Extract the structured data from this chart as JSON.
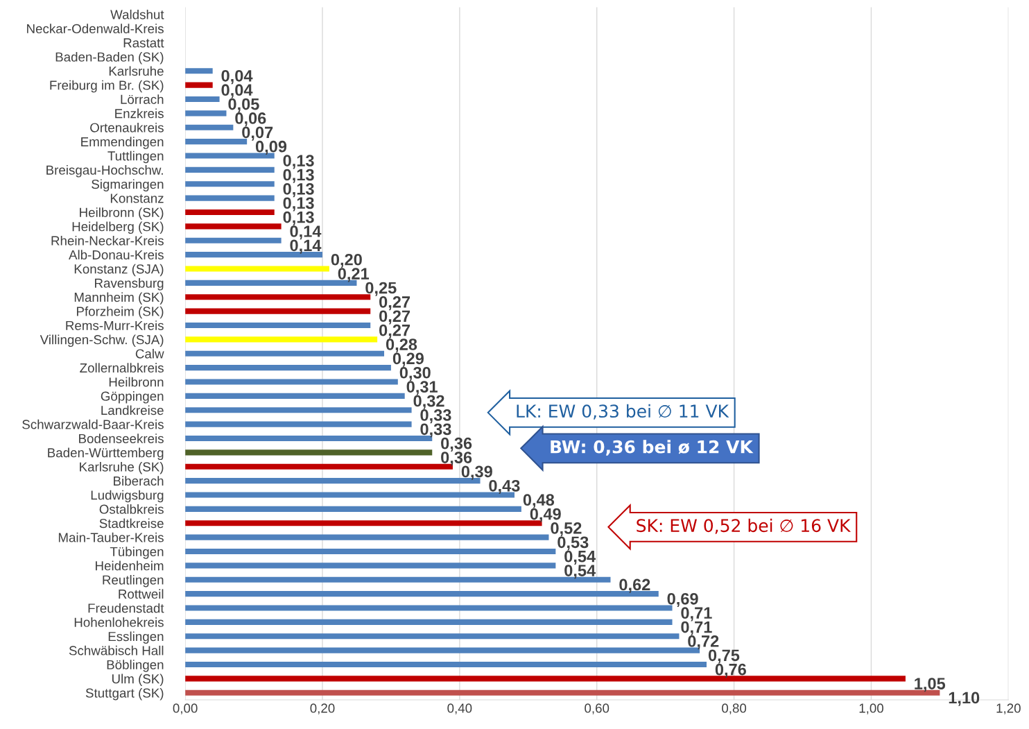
{
  "chart_data": {
    "type": "bar",
    "orientation": "horizontal",
    "categories": [
      "Waldshut",
      "Neckar-Odenwald-Kreis",
      "Rastatt",
      "Baden-Baden (SK)",
      "Karlsruhe",
      "Freiburg im Br. (SK)",
      "Lörrach",
      "Enzkreis",
      "Ortenaukreis",
      "Emmendingen",
      "Tuttlingen",
      "Breisgau-Hochschw.",
      "Sigmaringen",
      "Konstanz",
      "Heilbronn (SK)",
      "Heidelberg (SK)",
      "Rhein-Neckar-Kreis",
      "Alb-Donau-Kreis",
      "Konstanz (SJA)",
      "Ravensburg",
      "Mannheim (SK)",
      "Pforzheim (SK)",
      "Rems-Murr-Kreis",
      "Villingen-Schw. (SJA)",
      "Calw",
      "Zollernalbkreis",
      "Heilbronn",
      "Göppingen",
      "Landkreise",
      "Schwarzwald-Baar-Kreis",
      "Bodenseekreis",
      "Baden-Württemberg",
      "Karlsruhe (SK)",
      "Biberach",
      "Ludwigsburg",
      "Ostalbkreis",
      "Stadtkreise",
      "Main-Tauber-Kreis",
      "Tübingen",
      "Heidenheim",
      "Reutlingen",
      "Rottweil",
      "Freudenstadt",
      "Hohenlohekreis",
      "Esslingen",
      "Schwäbisch Hall",
      "Böblingen",
      "Ulm (SK)",
      "Stuttgart (SK)"
    ],
    "values": [
      null,
      null,
      null,
      null,
      0.04,
      0.04,
      0.05,
      0.06,
      0.07,
      0.09,
      0.13,
      0.13,
      0.13,
      0.13,
      0.13,
      0.14,
      0.14,
      0.2,
      0.21,
      0.25,
      0.27,
      0.27,
      0.27,
      0.28,
      0.29,
      0.3,
      0.31,
      0.32,
      0.33,
      0.33,
      0.36,
      0.36,
      0.39,
      0.43,
      0.48,
      0.49,
      0.52,
      0.53,
      0.54,
      0.54,
      0.62,
      0.69,
      0.71,
      0.71,
      0.72,
      0.75,
      0.76,
      1.05,
      1.1
    ],
    "value_labels": [
      null,
      null,
      null,
      null,
      "0,04",
      "0,04",
      "0,05",
      "0,06",
      "0,07",
      "0,09",
      "0,13",
      "0,13",
      "0,13",
      "0,13",
      "0,13",
      "0,14",
      "0,14",
      "0,20",
      "0,21",
      "0,25",
      "0,27",
      "0,27",
      "0,27",
      "0,28",
      "0,29",
      "0,30",
      "0,31",
      "0,32",
      "0,33",
      "0,33",
      "0,36",
      "0,36",
      "0,39",
      "0,43",
      "0,48",
      "0,49",
      "0,52",
      "0,53",
      "0,54",
      "0,54",
      "0,62",
      "0,69",
      "0,71",
      "0,71",
      "0,72",
      "0,75",
      "0,76",
      "1,05",
      "1,10"
    ],
    "colors": [
      "#4f81bd",
      "#4f81bd",
      "#4f81bd",
      "#4f81bd",
      "#4f81bd",
      "#c00000",
      "#4f81bd",
      "#4f81bd",
      "#4f81bd",
      "#4f81bd",
      "#4f81bd",
      "#4f81bd",
      "#4f81bd",
      "#4f81bd",
      "#c00000",
      "#c00000",
      "#4f81bd",
      "#4f81bd",
      "#ffff00",
      "#4f81bd",
      "#c00000",
      "#c00000",
      "#4f81bd",
      "#ffff00",
      "#4f81bd",
      "#4f81bd",
      "#4f81bd",
      "#4f81bd",
      "#4f81bd",
      "#4f81bd",
      "#4f81bd",
      "#4f6228",
      "#c00000",
      "#4f81bd",
      "#4f81bd",
      "#4f81bd",
      "#c00000",
      "#4f81bd",
      "#4f81bd",
      "#4f81bd",
      "#4f81bd",
      "#4f81bd",
      "#4f81bd",
      "#4f81bd",
      "#4f81bd",
      "#4f81bd",
      "#4f81bd",
      "#c00000",
      "#c0504d"
    ],
    "xlim": [
      0,
      1.2
    ],
    "xticks": [
      {
        "value": 0,
        "label": "0,00"
      },
      {
        "value": 0.2,
        "label": "0,20"
      },
      {
        "value": 0.4,
        "label": "0,40"
      },
      {
        "value": 0.6,
        "label": "0,60"
      },
      {
        "value": 0.8,
        "label": "0,80"
      },
      {
        "value": 1.0,
        "label": "1,00"
      },
      {
        "value": 1.2,
        "label": "1,20"
      }
    ],
    "grid": "x",
    "annotations": [
      "LK: EW 0,33 bei ∅ 11 VK",
      "BW: 0,36 bei ø 12 VK",
      "SK: EW 0,52 bei ∅ 16 VK"
    ]
  }
}
